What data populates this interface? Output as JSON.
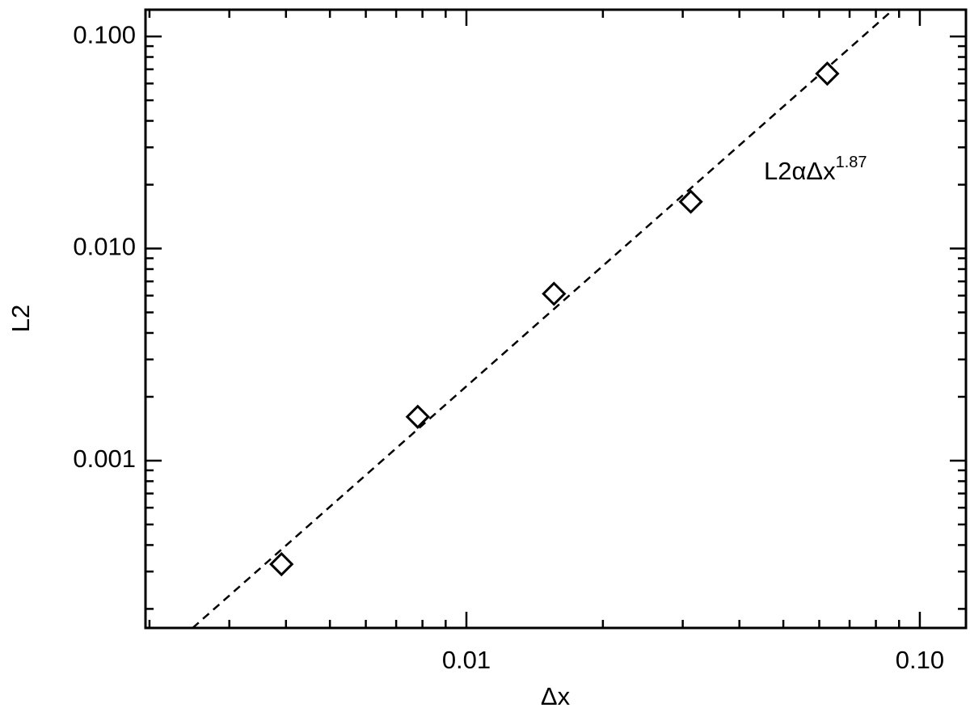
{
  "chart_data": {
    "type": "scatter",
    "x_label": "Δx",
    "y_label": "L2",
    "annotation": "L2αΔx",
    "annotation_exponent": "1.87",
    "log_x": true,
    "log_y": true,
    "xlim": [
      0.00196,
      0.1264
    ],
    "ylim": [
      0.0001626,
      0.1337
    ],
    "xticks": [
      0.01,
      {
        "value": 0.1,
        "label": "0.10"
      }
    ],
    "yticks": [
      0.001,
      {
        "value": 0.01,
        "label": "0.010"
      },
      {
        "value": 0.1,
        "label": "0.100"
      }
    ],
    "xminorticks": [
      0.002,
      0.003,
      0.004,
      0.005,
      0.006,
      0.007,
      0.008,
      0.009,
      0.02,
      0.03,
      0.04,
      0.05,
      0.06,
      0.07,
      0.08,
      0.09
    ],
    "yminorticks": [
      0.0002,
      0.0003,
      0.0004,
      0.0005,
      0.0006,
      0.0007,
      0.0008,
      0.0009,
      0.002,
      0.003,
      0.004,
      0.005,
      0.006,
      0.007,
      0.008,
      0.009,
      0.02,
      0.03,
      0.04,
      0.05,
      0.06,
      0.07,
      0.08,
      0.09
    ],
    "x": [
      0.00391,
      0.00781,
      0.0156,
      0.03125,
      0.0625
    ],
    "values": [
      0.000325,
      0.00161,
      0.00612,
      0.01663,
      0.0668
    ],
    "color": "#000000",
    "fit_line": {
      "x": [
        0.00249,
        0.0873
      ],
      "values": [
        0.0001626,
        0.1337
      ],
      "color": "#000000"
    }
  }
}
